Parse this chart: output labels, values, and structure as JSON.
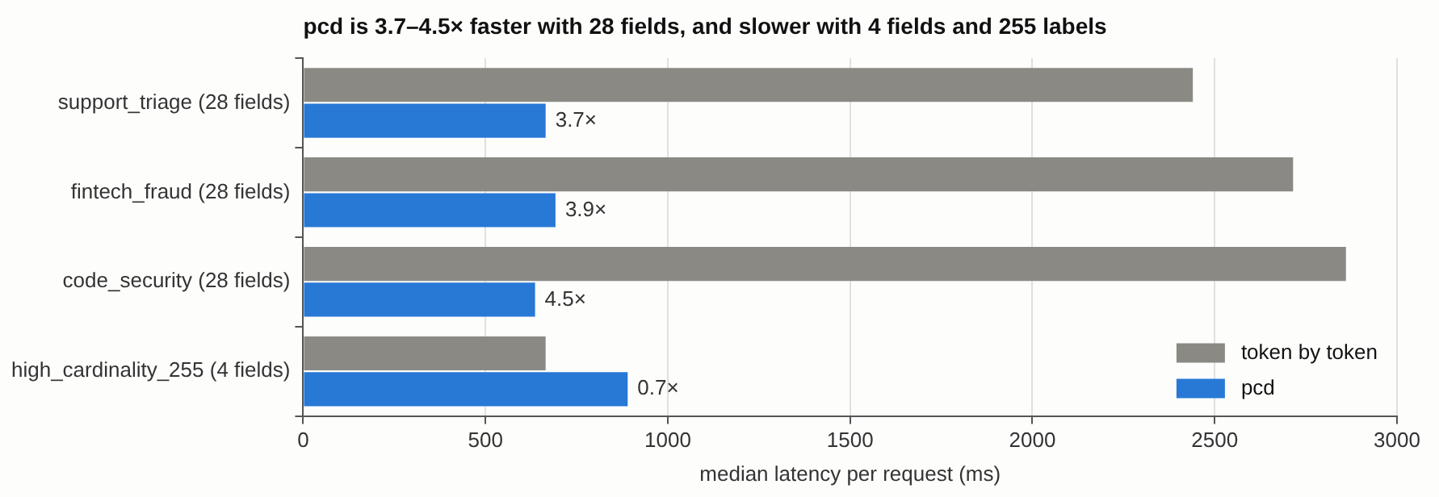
{
  "chart_data": {
    "type": "bar",
    "orientation": "horizontal",
    "title": "pcd is 3.7–4.5× faster with 28 fields, and slower with 4 fields and 255 labels",
    "xlabel": "median latency per request (ms)",
    "categories": [
      "support_triage (28 fields)",
      "fintech_fraud (28 fields)",
      "code_security (28 fields)",
      "high_cardinality_255 (4 fields)"
    ],
    "series": [
      {
        "name": "token by token",
        "color": "#8a8984",
        "values": [
          2440,
          2715,
          2860,
          665
        ]
      },
      {
        "name": "pcd",
        "color": "#2878d6",
        "values": [
          665,
          692,
          636,
          890
        ]
      }
    ],
    "annotations": [
      {
        "text": "3.7×",
        "x": 665,
        "y": "support_triage (28 fields)"
      },
      {
        "text": "3.9×",
        "x": 692,
        "y": "fintech_fraud (28 fields)"
      },
      {
        "text": "4.5×",
        "x": 636,
        "y": "code_security (28 fields)"
      },
      {
        "text": "0.7×",
        "x": 890,
        "y": "high_cardinality_255 (4 fields)"
      }
    ],
    "xlim": [
      0,
      3000
    ],
    "xticks": [
      0,
      500,
      1000,
      1500,
      2000,
      2500,
      3000
    ],
    "grid": "x",
    "legend": "bottom right"
  }
}
